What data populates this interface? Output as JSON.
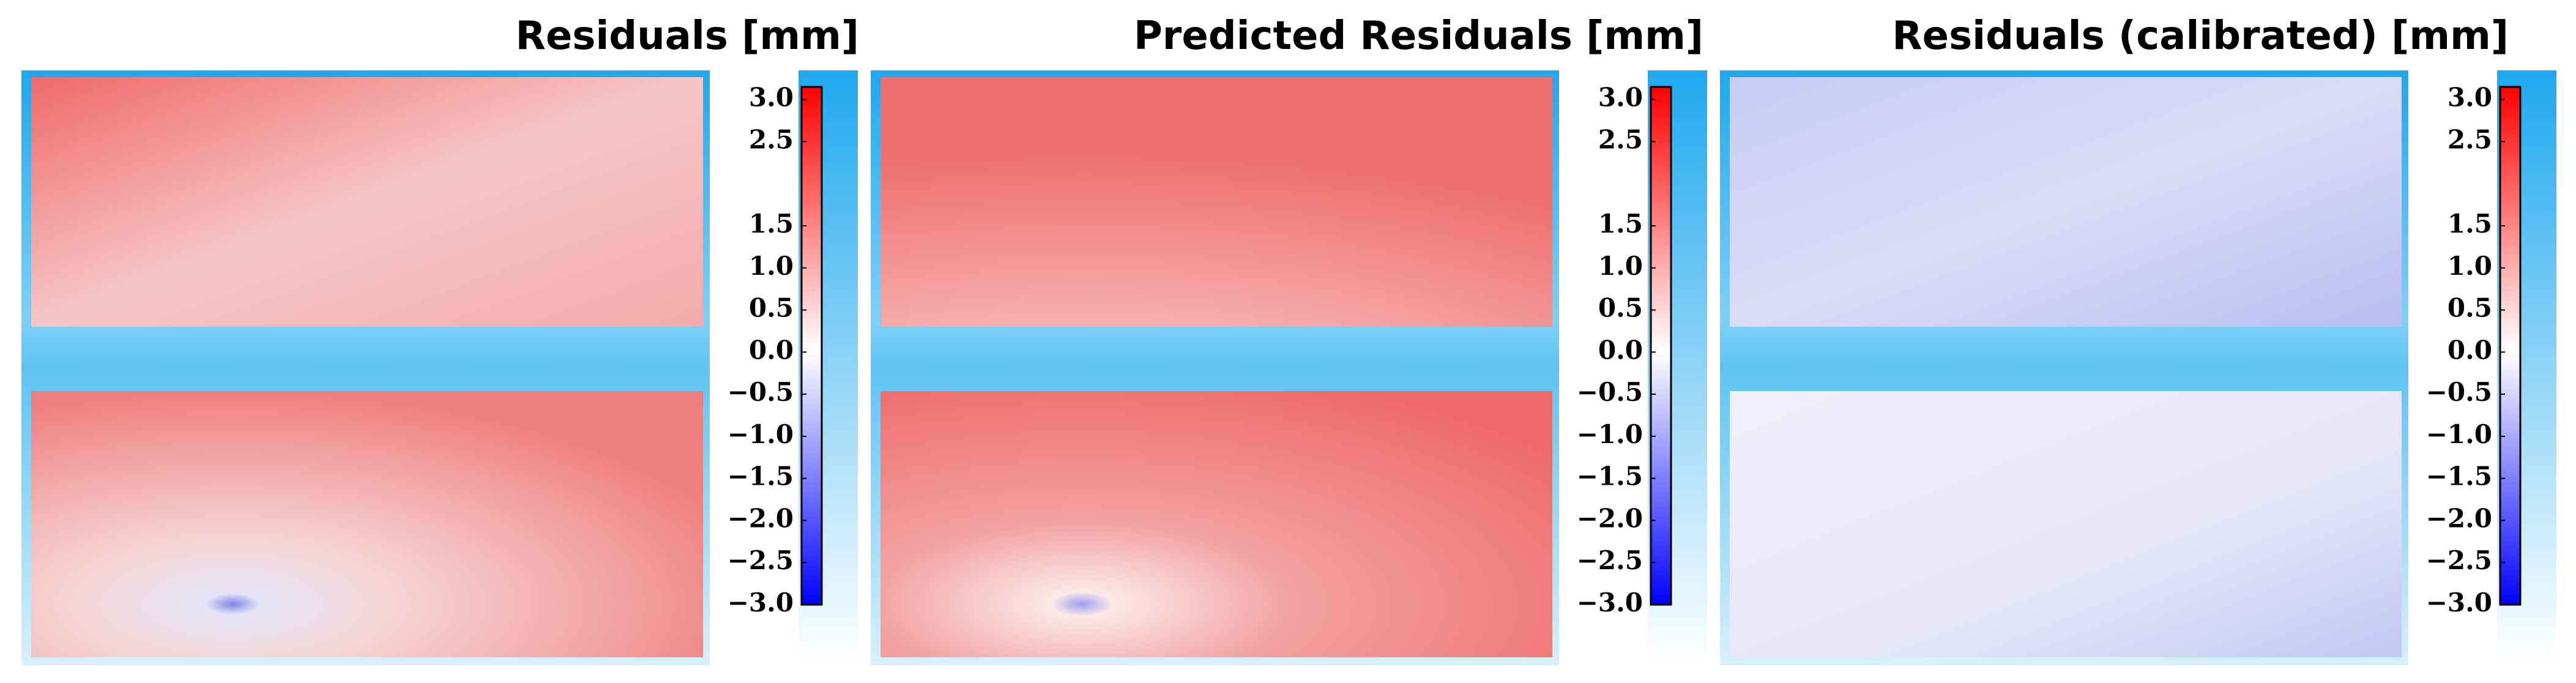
{
  "chart_data": [
    {
      "type": "heatmap",
      "title": "Residuals [mm]",
      "colormap": [
        "#0000ff",
        "#ffffff",
        "#ff0000"
      ],
      "clim": [
        -3.0,
        3.15
      ],
      "cticks": [
        {
          "value": 3.0,
          "label": "3.0"
        },
        {
          "value": 2.5,
          "label": "2.5"
        },
        {
          "value": 1.5,
          "label": "1.5"
        },
        {
          "value": 1.0,
          "label": "1.0"
        },
        {
          "value": 0.5,
          "label": "0.5"
        },
        {
          "value": 0.0,
          "label": "0.0"
        },
        {
          "value": -0.5,
          "label": "−0.5"
        },
        {
          "value": -1.0,
          "label": "−1.0"
        },
        {
          "value": -1.5,
          "label": "−1.5"
        },
        {
          "value": -2.0,
          "label": "−2.0"
        },
        {
          "value": -2.5,
          "label": "−2.5"
        },
        {
          "value": -3.0,
          "label": "−3.0"
        }
      ]
    },
    {
      "type": "heatmap",
      "title": "Predicted Residuals [mm]",
      "colormap": [
        "#0000ff",
        "#ffffff",
        "#ff0000"
      ],
      "clim": [
        -3.0,
        3.15
      ],
      "cticks": [
        {
          "value": 3.0,
          "label": "3.0"
        },
        {
          "value": 2.5,
          "label": "2.5"
        },
        {
          "value": 1.5,
          "label": "1.5"
        },
        {
          "value": 1.0,
          "label": "1.0"
        },
        {
          "value": 0.5,
          "label": "0.5"
        },
        {
          "value": 0.0,
          "label": "0.0"
        },
        {
          "value": -0.5,
          "label": "−0.5"
        },
        {
          "value": -1.0,
          "label": "−1.0"
        },
        {
          "value": -1.5,
          "label": "−1.5"
        },
        {
          "value": -2.0,
          "label": "−2.0"
        },
        {
          "value": -2.5,
          "label": "−2.5"
        },
        {
          "value": -3.0,
          "label": "−3.0"
        }
      ]
    },
    {
      "type": "heatmap",
      "title": "Residuals (calibrated) [mm]",
      "colormap": [
        "#0000ff",
        "#ffffff",
        "#ff0000"
      ],
      "clim": [
        -3.0,
        3.15
      ],
      "cticks": [
        {
          "value": 3.0,
          "label": "3.0"
        },
        {
          "value": 2.5,
          "label": "2.5"
        },
        {
          "value": 1.5,
          "label": "1.5"
        },
        {
          "value": 1.0,
          "label": "1.0"
        },
        {
          "value": 0.5,
          "label": "0.5"
        },
        {
          "value": 0.0,
          "label": "0.0"
        },
        {
          "value": -0.5,
          "label": "−0.5"
        },
        {
          "value": -1.0,
          "label": "−1.0"
        },
        {
          "value": -1.5,
          "label": "−1.5"
        },
        {
          "value": -2.0,
          "label": "−2.0"
        },
        {
          "value": -2.5,
          "label": "−2.5"
        },
        {
          "value": -3.0,
          "label": "−3.0"
        }
      ]
    }
  ]
}
